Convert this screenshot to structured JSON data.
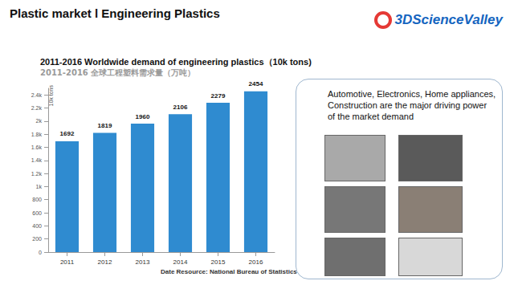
{
  "slide": {
    "title": "Plastic market l Engineering Plastics",
    "logo": "3DScienceValley",
    "panel_text": "Automotive, Electronics, Home appliances, Construction are the major driving power of the market demand",
    "source": "Date Resource: National Bureau of Statistics"
  },
  "chart_data": {
    "type": "bar",
    "title": "2011-2016 Worldwide demand of engineering plastics（10k tons)",
    "subtitle": "2011-2016 全球工程塑料需求量（万吨）",
    "ylabel": "10k tons",
    "categories": [
      "2011",
      "2012",
      "2013",
      "2014",
      "2015",
      "2016"
    ],
    "values": [
      1692,
      1819,
      1960,
      2106,
      2279,
      2454
    ],
    "color": "#2f8bd0",
    "ylim": [
      0,
      2500
    ],
    "yticks": [
      0,
      200,
      400,
      600,
      800,
      {
        "value": 1000,
        "label": "1k"
      },
      {
        "value": 1200,
        "label": "1.2k"
      },
      {
        "value": 1400,
        "label": "1.4k"
      },
      {
        "value": 1600,
        "label": "1.6k"
      },
      {
        "value": 1800,
        "label": "1.8k"
      },
      {
        "value": 2000,
        "label": "2k"
      },
      {
        "value": 2200,
        "label": "2.2k"
      },
      {
        "value": 2400,
        "label": "2.4k"
      }
    ],
    "grid": false,
    "data_labels": true
  }
}
